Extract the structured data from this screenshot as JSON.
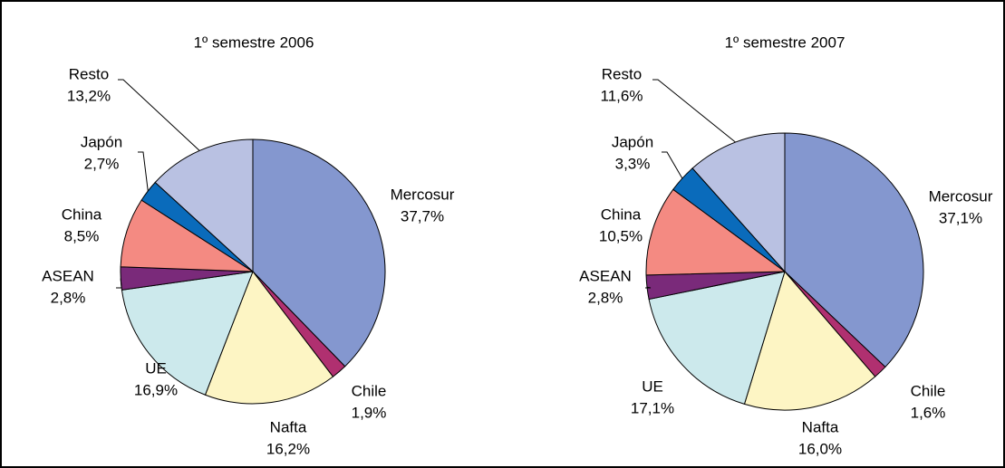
{
  "chart_data": [
    {
      "type": "pie",
      "title": "1º semestre 2006",
      "categories": [
        "Mercosur",
        "Chile",
        "Nafta",
        "UE",
        "ASEAN",
        "China",
        "Japón",
        "Resto"
      ],
      "values": [
        37.7,
        1.9,
        16.2,
        16.9,
        2.8,
        8.5,
        2.7,
        13.2
      ],
      "value_labels": [
        "37,7%",
        "1,9%",
        "16,2%",
        "16,9%",
        "2,8%",
        "8,5%",
        "2,7%",
        "13,2%"
      ],
      "colors": [
        "#8497cf",
        "#b03070",
        "#fdf5c4",
        "#cce9ec",
        "#7a2a7a",
        "#f48a82",
        "#0a6bbb",
        "#b9c1e2"
      ]
    },
    {
      "type": "pie",
      "title": "1º semestre 2007",
      "categories": [
        "Mercosur",
        "Chile",
        "Nafta",
        "UE",
        "ASEAN",
        "China",
        "Japón",
        "Resto"
      ],
      "values": [
        37.1,
        1.6,
        16.0,
        17.1,
        2.8,
        10.5,
        3.3,
        11.6
      ],
      "value_labels": [
        "37,1%",
        "1,6%",
        "16,0%",
        "17,1%",
        "2,8%",
        "10,5%",
        "3,3%",
        "11,6%"
      ],
      "colors": [
        "#8497cf",
        "#b03070",
        "#fdf5c4",
        "#cce9ec",
        "#7a2a7a",
        "#f48a82",
        "#0a6bbb",
        "#b9c1e2"
      ]
    }
  ]
}
